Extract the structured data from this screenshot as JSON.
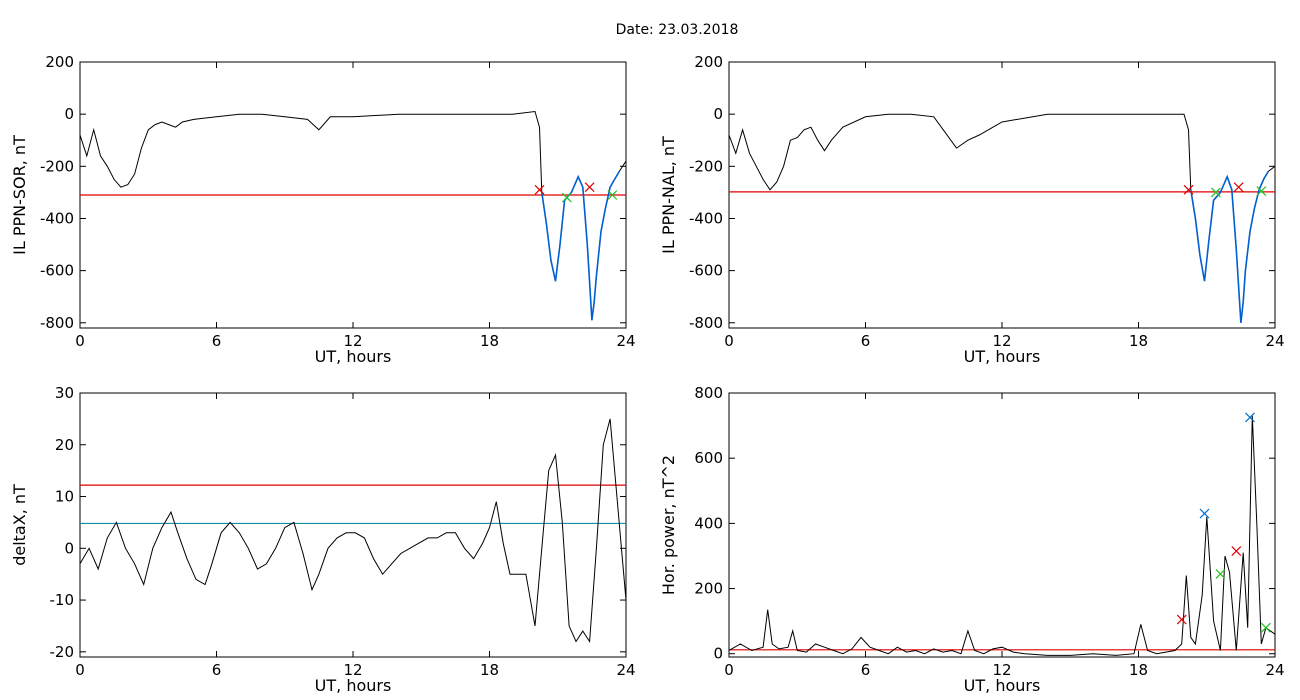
{
  "figure": {
    "title": "Date:  23.03.2018"
  },
  "colors": {
    "trace": "#000000",
    "threshold": "#e00000",
    "threshold2": "#1090a8",
    "highlight": "#0060d0",
    "marker_red": "#e00000",
    "marker_green": "#20c020",
    "marker_blue": "#0070d0"
  },
  "chart_data": [
    {
      "type": "line",
      "xlabel": "UT, hours",
      "ylabel": "IL PPN-SOR, nT",
      "xlim": [
        0,
        24
      ],
      "ylim": [
        -820,
        200
      ],
      "xticks": [
        0,
        6,
        12,
        18,
        24
      ],
      "yticks": [
        -800,
        -600,
        -400,
        -200,
        0,
        200
      ],
      "x": [
        0,
        0.3,
        0.6,
        0.9,
        1.2,
        1.5,
        1.8,
        2.1,
        2.4,
        2.7,
        3.0,
        3.3,
        3.6,
        3.9,
        4.2,
        4.5,
        5,
        6,
        7,
        8,
        9,
        10,
        10.5,
        11,
        12,
        14,
        16,
        18,
        19,
        20,
        20.2,
        20.3,
        20.5,
        20.7,
        20.9,
        21.1,
        21.3,
        21.6,
        21.9,
        22.1,
        22.3,
        22.5,
        22.6,
        22.7,
        22.9,
        23.1,
        23.3,
        23.5,
        23.7,
        24
      ],
      "y": [
        -80,
        -160,
        -60,
        -160,
        -200,
        -250,
        -280,
        -270,
        -230,
        -130,
        -60,
        -40,
        -30,
        -40,
        -50,
        -30,
        -20,
        -10,
        0,
        0,
        -10,
        -20,
        -60,
        -10,
        -10,
        0,
        0,
        0,
        0,
        10,
        -50,
        -300,
        -420,
        -560,
        -640,
        -500,
        -330,
        -300,
        -240,
        -280,
        -500,
        -790,
        -720,
        -620,
        -450,
        -360,
        -280,
        -250,
        -220,
        -180
      ],
      "series": [
        {
          "name": "",
          "x_start": 20.3,
          "x_end": 23.7
        }
      ],
      "threshold": -310,
      "markers": [
        {
          "x": 20.2,
          "y": -290,
          "color": "red"
        },
        {
          "x": 21.4,
          "y": -320,
          "color": "green"
        },
        {
          "x": 22.4,
          "y": -280,
          "color": "red"
        },
        {
          "x": 23.4,
          "y": -310,
          "color": "green"
        }
      ]
    },
    {
      "type": "line",
      "xlabel": "UT, hours",
      "ylabel": "IL PPN-NAL, nT",
      "xlim": [
        0,
        24
      ],
      "ylim": [
        -820,
        200
      ],
      "xticks": [
        0,
        6,
        12,
        18,
        24
      ],
      "yticks": [
        -800,
        -600,
        -400,
        -200,
        0,
        200
      ],
      "x": [
        0,
        0.3,
        0.6,
        0.9,
        1.2,
        1.5,
        1.8,
        2.1,
        2.4,
        2.7,
        3.0,
        3.3,
        3.6,
        3.9,
        4.2,
        4.5,
        5,
        6,
        7,
        8,
        9,
        10,
        10.5,
        11,
        12,
        14,
        16,
        18,
        19,
        20,
        20.2,
        20.3,
        20.5,
        20.7,
        20.9,
        21.1,
        21.3,
        21.6,
        21.9,
        22.1,
        22.3,
        22.5,
        22.6,
        22.7,
        22.9,
        23.1,
        23.3,
        23.5,
        23.7,
        24
      ],
      "y": [
        -80,
        -150,
        -60,
        -150,
        -200,
        -250,
        -290,
        -260,
        -200,
        -100,
        -90,
        -60,
        -50,
        -100,
        -140,
        -100,
        -50,
        -10,
        0,
        0,
        -10,
        -130,
        -100,
        -80,
        -30,
        0,
        0,
        0,
        0,
        0,
        -60,
        -290,
        -400,
        -540,
        -640,
        -480,
        -330,
        -300,
        -240,
        -290,
        -520,
        -800,
        -720,
        -600,
        -450,
        -360,
        -290,
        -250,
        -220,
        -200
      ],
      "series": [
        {
          "name": "",
          "x_start": 20.3,
          "x_end": 23.7
        }
      ],
      "threshold": -298,
      "markers": [
        {
          "x": 20.2,
          "y": -290,
          "color": "red"
        },
        {
          "x": 21.4,
          "y": -300,
          "color": "green"
        },
        {
          "x": 22.4,
          "y": -280,
          "color": "red"
        },
        {
          "x": 23.4,
          "y": -295,
          "color": "green"
        }
      ]
    },
    {
      "type": "line",
      "xlabel": "UT, hours",
      "ylabel": "deltaX, nT",
      "xlim": [
        0,
        24
      ],
      "ylim": [
        -21,
        30
      ],
      "xticks": [
        0,
        6,
        12,
        18,
        24
      ],
      "yticks": [
        -20,
        -10,
        0,
        10,
        20,
        30
      ],
      "x": [
        0,
        0.4,
        0.8,
        1.2,
        1.6,
        2.0,
        2.4,
        2.8,
        3.2,
        3.6,
        4.0,
        4.3,
        4.7,
        5.1,
        5.5,
        5.8,
        6.2,
        6.6,
        7.0,
        7.4,
        7.8,
        8.2,
        8.6,
        9.0,
        9.4,
        9.8,
        10.2,
        10.5,
        10.9,
        11.3,
        11.7,
        12.1,
        12.5,
        12.9,
        13.3,
        13.7,
        14.1,
        14.5,
        14.9,
        15.3,
        15.7,
        16.1,
        16.5,
        16.9,
        17.3,
        17.7,
        18.0,
        18.3,
        18.6,
        18.9,
        19.2,
        19.6,
        20.0,
        20.3,
        20.6,
        20.9,
        21.2,
        21.5,
        21.8,
        22.1,
        22.4,
        22.7,
        23.0,
        23.3,
        23.6,
        24
      ],
      "y": [
        -3,
        0,
        -4,
        2,
        5,
        0,
        -3,
        -7,
        0,
        4,
        7,
        3,
        -2,
        -6,
        -7,
        -3,
        3,
        5,
        3,
        0,
        -4,
        -3,
        0,
        4,
        5,
        -1,
        -8,
        -5,
        0,
        2,
        3,
        3,
        2,
        -2,
        -5,
        -3,
        -1,
        0,
        1,
        2,
        2,
        3,
        3,
        0,
        -2,
        1,
        4,
        9,
        1,
        -5,
        -5,
        -5,
        -15,
        0,
        15,
        18,
        5,
        -15,
        -18,
        -16,
        -18,
        0,
        20,
        25,
        10,
        -10
      ],
      "threshold": 12.2,
      "threshold2": 4.8,
      "markers": []
    },
    {
      "type": "line",
      "xlabel": "UT, hours",
      "ylabel": "Hor. power, nT^2",
      "xlim": [
        0,
        24
      ],
      "ylim": [
        -10,
        800
      ],
      "xticks": [
        0,
        6,
        12,
        18,
        24
      ],
      "yticks": [
        0,
        200,
        400,
        600,
        800
      ],
      "x": [
        0,
        0.5,
        1.0,
        1.5,
        1.7,
        1.9,
        2.2,
        2.6,
        2.8,
        3.0,
        3.4,
        3.8,
        4.2,
        4.6,
        5.0,
        5.4,
        5.8,
        6.2,
        6.6,
        7.0,
        7.4,
        7.8,
        8.2,
        8.6,
        9.0,
        9.4,
        9.8,
        10.2,
        10.5,
        10.8,
        11.2,
        11.6,
        12.0,
        12.5,
        13,
        14,
        15,
        16,
        17,
        17.8,
        18.1,
        18.4,
        18.8,
        19.2,
        19.6,
        19.9,
        20.1,
        20.3,
        20.5,
        20.8,
        21.0,
        21.3,
        21.6,
        21.8,
        22.0,
        22.3,
        22.6,
        22.8,
        23.0,
        23.2,
        23.4,
        23.6,
        24
      ],
      "y": [
        10,
        30,
        10,
        20,
        135,
        30,
        15,
        20,
        70,
        10,
        5,
        30,
        20,
        10,
        0,
        15,
        50,
        20,
        10,
        0,
        20,
        5,
        10,
        0,
        15,
        5,
        10,
        0,
        70,
        10,
        0,
        15,
        20,
        5,
        0,
        -5,
        -5,
        0,
        -5,
        0,
        90,
        10,
        0,
        5,
        10,
        30,
        240,
        50,
        30,
        180,
        420,
        100,
        10,
        300,
        250,
        10,
        310,
        80,
        730,
        400,
        30,
        80,
        60
      ],
      "threshold": 12,
      "markers": [
        {
          "x": 19.9,
          "y": 105,
          "color": "red"
        },
        {
          "x": 20.9,
          "y": 430,
          "color": "blue"
        },
        {
          "x": 21.6,
          "y": 245,
          "color": "green"
        },
        {
          "x": 22.3,
          "y": 315,
          "color": "red"
        },
        {
          "x": 22.9,
          "y": 725,
          "color": "blue"
        },
        {
          "x": 23.6,
          "y": 80,
          "color": "green"
        }
      ]
    }
  ]
}
